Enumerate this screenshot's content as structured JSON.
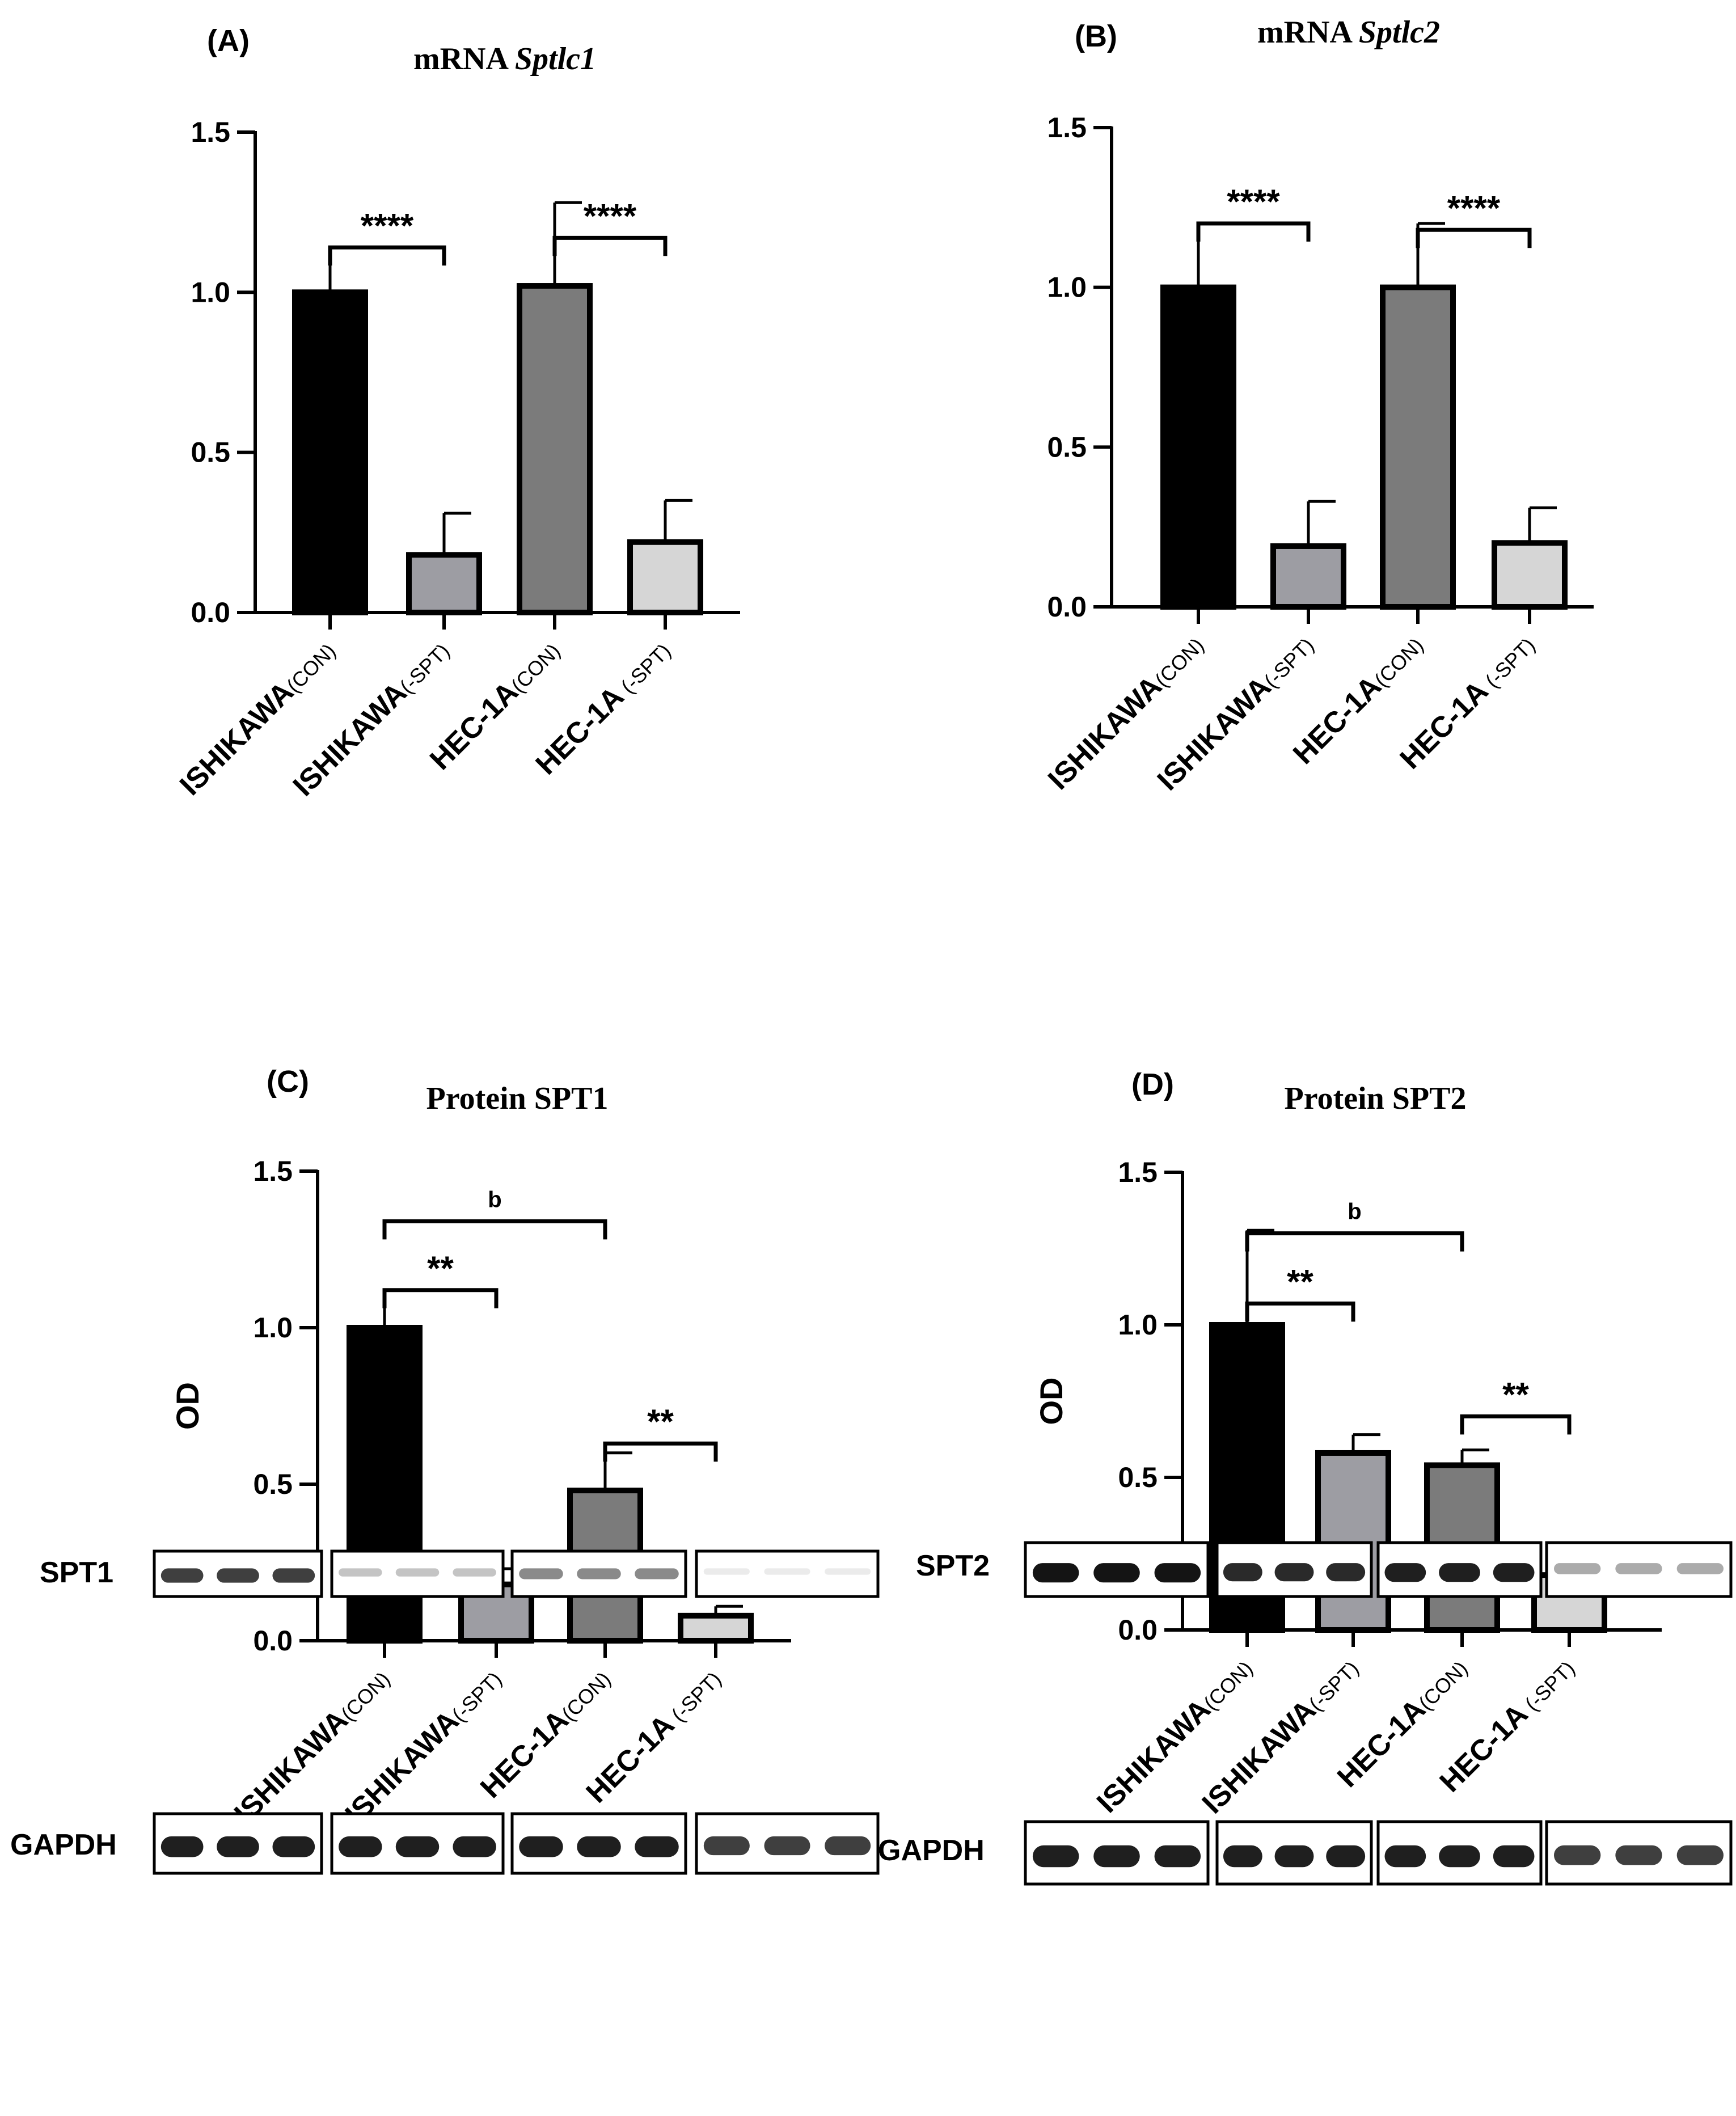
{
  "colors": {
    "bar_fills": [
      "#000000",
      "#9d9da3",
      "#7b7b7b",
      "#d6d6d6"
    ],
    "stroke": "#000000",
    "band": "#1a1a1a",
    "background": "#ffffff"
  },
  "chart_data": [
    {
      "type": "bar",
      "panel_label": "(A)",
      "title_plain": "mRNA ",
      "title_italic": "Sptlc1",
      "ylabel": "",
      "ylim": [
        0,
        1.5
      ],
      "yticks": [
        "0.0",
        "0.5",
        "1.0",
        "1.5"
      ],
      "categories": [
        {
          "main": "ISHIKAWA",
          "sub": "(CON)"
        },
        {
          "main": "ISHIKAWA",
          "sub": "(-SPT)"
        },
        {
          "main": "HEC-1A",
          "sub": "(CON)"
        },
        {
          "main": "HEC-1A",
          "sub": " (-SPT)"
        }
      ],
      "values": [
        1.0,
        0.18,
        1.02,
        0.22
      ],
      "errors": [
        0.14,
        0.13,
        0.26,
        0.13
      ],
      "significance": [
        {
          "from": 0,
          "to": 1,
          "text": "****",
          "y": 1.14
        },
        {
          "from": 2,
          "to": 3,
          "text": "****",
          "y": 1.17
        }
      ]
    },
    {
      "type": "bar",
      "panel_label": "(B)",
      "title_plain": "mRNA ",
      "title_italic": "Sptlc2",
      "ylabel": "",
      "ylim": [
        0,
        1.5
      ],
      "yticks": [
        "0.0",
        "0.5",
        "1.0",
        "1.5"
      ],
      "categories": [
        {
          "main": "ISHIKAWA",
          "sub": "(CON)"
        },
        {
          "main": "ISHIKAWA",
          "sub": "(-SPT)"
        },
        {
          "main": "HEC-1A",
          "sub": "(CON)"
        },
        {
          "main": "HEC-1A",
          "sub": " (-SPT)"
        }
      ],
      "values": [
        1.0,
        0.19,
        1.0,
        0.2
      ],
      "errors": [
        0.2,
        0.14,
        0.2,
        0.11
      ],
      "significance": [
        {
          "from": 0,
          "to": 1,
          "text": "****",
          "y": 1.2
        },
        {
          "from": 2,
          "to": 3,
          "text": "****",
          "y": 1.18
        }
      ]
    },
    {
      "type": "bar",
      "panel_label": "(C)",
      "title_plain": "Protein SPT1",
      "title_italic": "",
      "ylabel": "OD",
      "ylim": [
        0,
        1.5
      ],
      "yticks": [
        "0.0",
        "0.5",
        "1.0",
        "1.5"
      ],
      "categories": [
        {
          "main": "ISHIKAWA",
          "sub": "(CON)"
        },
        {
          "main": "ISHIKAWA",
          "sub": "(-SPT)"
        },
        {
          "main": "HEC-1A",
          "sub": "(CON)"
        },
        {
          "main": "HEC-1A",
          "sub": " (-SPT)"
        }
      ],
      "values": [
        1.0,
        0.18,
        0.48,
        0.08
      ],
      "errors": [
        0.12,
        0.05,
        0.12,
        0.03
      ],
      "significance": [
        {
          "from": 0,
          "to": 2,
          "text": "b",
          "y": 1.34,
          "small": true
        },
        {
          "from": 0,
          "to": 1,
          "text": "**",
          "y": 1.12
        },
        {
          "from": 2,
          "to": 3,
          "text": "**",
          "y": 0.63
        }
      ]
    },
    {
      "type": "bar",
      "panel_label": "(D)",
      "title_plain": "Protein SPT2",
      "title_italic": "",
      "ylabel": "OD",
      "ylim": [
        0,
        1.5
      ],
      "yticks": [
        "0.0",
        "0.5",
        "1.0",
        "1.5"
      ],
      "categories": [
        {
          "main": "ISHIKAWA",
          "sub": "(CON)"
        },
        {
          "main": "ISHIKAWA",
          "sub": "(-SPT)"
        },
        {
          "main": "HEC-1A",
          "sub": "(CON)"
        },
        {
          "main": "HEC-1A",
          "sub": " (-SPT)"
        }
      ],
      "values": [
        1.0,
        0.58,
        0.54,
        0.18
      ],
      "errors": [
        0.31,
        0.06,
        0.05,
        0.02
      ],
      "significance": [
        {
          "from": 0,
          "to": 2,
          "text": "b",
          "y": 1.3,
          "small": true
        },
        {
          "from": 0,
          "to": 1,
          "text": "**",
          "y": 1.07
        },
        {
          "from": 2,
          "to": 3,
          "text": "**",
          "y": 0.7
        }
      ]
    }
  ],
  "blots": {
    "spt1_label": "SPT1",
    "gapdh_left_label": "GAPDH",
    "spt2_label": "SPT2",
    "gapdh_right_label": "GAPDH",
    "spt1_intensity": [
      0.8,
      0.18,
      0.45,
      0.0
    ],
    "spt2_intensity": [
      1.0,
      0.9,
      0.95,
      0.3
    ],
    "gapdh_intensity": [
      0.95,
      0.95,
      0.95,
      0.8
    ]
  }
}
